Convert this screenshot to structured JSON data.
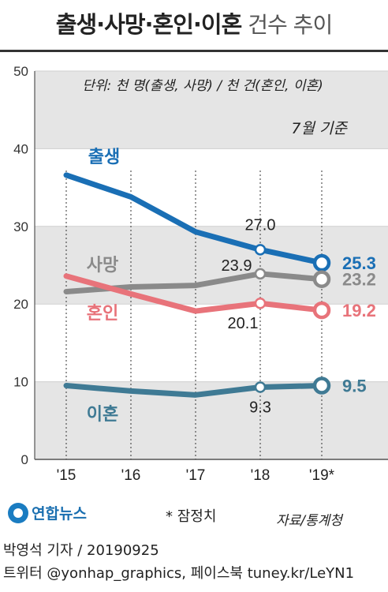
{
  "title": {
    "main": "출생·사망·혼인·이혼",
    "sub": "건수 추이"
  },
  "unit_note": "단위: 천 명(출생, 사망) / 천 건(혼인, 이혼)",
  "reference_note": "7월 기준",
  "footnote": "* 잠정치",
  "source": "자료/통계청",
  "logo_text": "연합뉴스",
  "credit": "박영석 기자 / 20190925",
  "sns": "트위터 @yonhap_graphics, 페이스북 tuney.kr/LeYN1",
  "chart_data": {
    "type": "line",
    "categories": [
      "'15",
      "'16",
      "'17",
      "'18",
      "'19*"
    ],
    "ylim": [
      0,
      50
    ],
    "yticks": [
      0,
      10,
      20,
      30,
      40,
      50
    ],
    "series": [
      {
        "name": "출생",
        "color": "#1a6fb5",
        "values": [
          36.6,
          33.8,
          29.3,
          27.0,
          25.3
        ],
        "labels": [
          null,
          null,
          null,
          "27.0",
          "25.3"
        ]
      },
      {
        "name": "사망",
        "color": "#8a8a8a",
        "values": [
          21.6,
          22.2,
          22.4,
          23.9,
          23.2
        ],
        "labels": [
          null,
          null,
          null,
          "23.9",
          "23.2"
        ]
      },
      {
        "name": "혼인",
        "color": "#e8737a",
        "values": [
          23.6,
          21.3,
          19.1,
          20.1,
          19.2
        ],
        "labels": [
          null,
          null,
          null,
          "20.1",
          "19.2"
        ]
      },
      {
        "name": "이혼",
        "color": "#3f7a94",
        "values": [
          9.5,
          8.8,
          8.3,
          9.3,
          9.5
        ],
        "labels": [
          null,
          null,
          null,
          "9.3",
          "9.5"
        ]
      }
    ],
    "grid": true
  }
}
